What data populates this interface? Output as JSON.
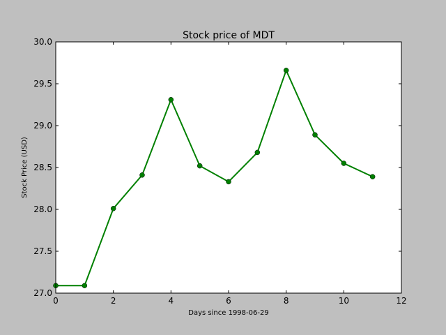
{
  "chart_data": {
    "type": "line",
    "title": "Stock price of MDT",
    "xlabel": "Days since 1998-06-29",
    "ylabel": "Stock Price (USD)",
    "xlim": [
      0,
      12
    ],
    "ylim": [
      27.0,
      30.0
    ],
    "xticks": [
      "0",
      "2",
      "4",
      "6",
      "8",
      "10",
      "12"
    ],
    "yticks": [
      "27.0",
      "27.5",
      "28.0",
      "28.5",
      "29.0",
      "29.5",
      "30.0"
    ],
    "grid": false,
    "series": [
      {
        "x": [
          0,
          1,
          2,
          3,
          4,
          5,
          6,
          7,
          8,
          9,
          10,
          11
        ],
        "values": [
          27.09,
          27.09,
          28.01,
          28.41,
          29.31,
          28.52,
          28.33,
          28.68,
          29.66,
          28.89,
          28.55,
          28.39
        ],
        "color": "#008000",
        "marker": "circle"
      }
    ]
  }
}
